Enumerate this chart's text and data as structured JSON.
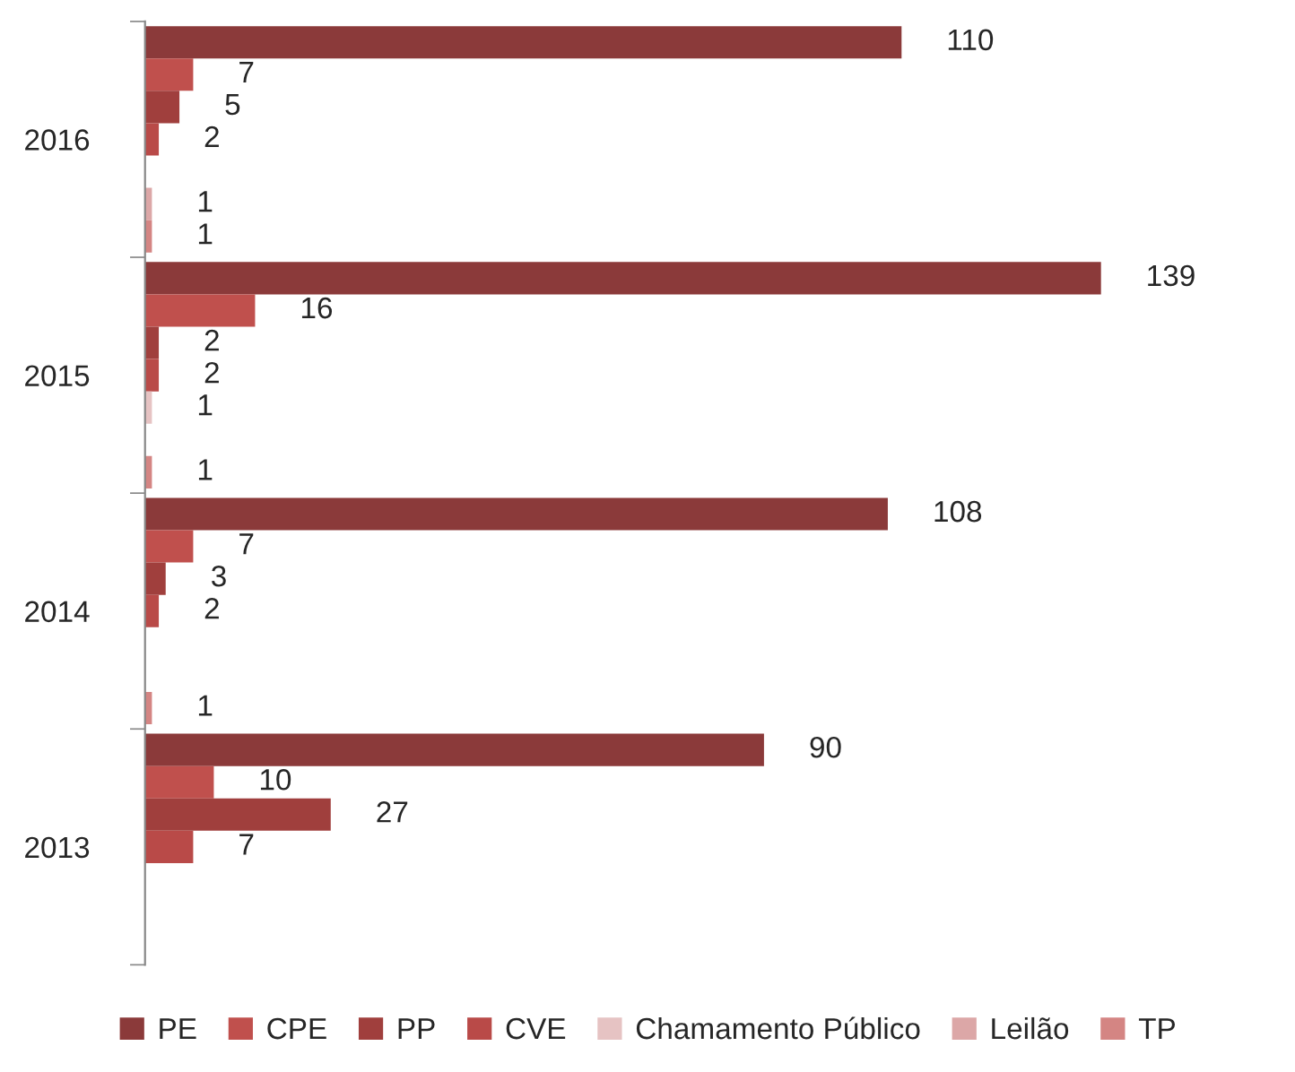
{
  "chart_data": {
    "type": "bar",
    "orientation": "horizontal",
    "data_labels": true,
    "legend": "bottom",
    "grid": false,
    "categories": [
      "2016",
      "2015",
      "2014",
      "2013"
    ],
    "series": [
      {
        "name": "PE",
        "color": "#8b3a3a",
        "values": [
          110,
          139,
          108,
          90
        ]
      },
      {
        "name": "CPE",
        "color": "#c0504d",
        "values": [
          7,
          16,
          7,
          10
        ]
      },
      {
        "name": "PP",
        "color": "#a03f3d",
        "values": [
          5,
          2,
          3,
          27
        ]
      },
      {
        "name": "CVE",
        "color": "#b94a48",
        "values": [
          2,
          2,
          2,
          7
        ]
      },
      {
        "name": "Chamamento Público",
        "color": "#e6c3c3",
        "values": [
          null,
          1,
          null,
          null
        ]
      },
      {
        "name": "Leilão",
        "color": "#dca7a7",
        "values": [
          1,
          null,
          null,
          null
        ]
      },
      {
        "name": "TP",
        "color": "#d48583",
        "values": [
          1,
          1,
          1,
          null
        ]
      }
    ]
  }
}
